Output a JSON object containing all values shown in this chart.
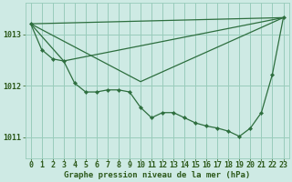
{
  "bg_color": "#ceeae4",
  "plot_bg_color": "#ceeae4",
  "grid_color": "#99ccbb",
  "line_color": "#2d6e3e",
  "marker_color": "#2d6e3e",
  "xlabel": "Graphe pression niveau de la mer (hPa)",
  "xlim": [
    -0.5,
    23.5
  ],
  "ylim": [
    1010.6,
    1013.6
  ],
  "yticks": [
    1011,
    1012,
    1013
  ],
  "xticks": [
    0,
    1,
    2,
    3,
    4,
    5,
    6,
    7,
    8,
    9,
    10,
    11,
    12,
    13,
    14,
    15,
    16,
    17,
    18,
    19,
    20,
    21,
    22,
    23
  ],
  "series1_x": [
    0,
    1,
    2,
    3,
    4,
    5,
    6,
    7,
    8,
    9,
    10,
    11,
    12,
    13,
    14,
    15,
    16,
    17,
    18,
    19,
    20,
    21,
    22,
    23
  ],
  "series1_y": [
    1013.2,
    1012.7,
    1012.52,
    1012.48,
    1012.05,
    1011.88,
    1011.88,
    1011.92,
    1011.92,
    1011.88,
    1011.58,
    1011.38,
    1011.48,
    1011.48,
    1011.38,
    1011.28,
    1011.22,
    1011.18,
    1011.12,
    1011.02,
    1011.18,
    1011.48,
    1012.22,
    1013.32
  ],
  "trend1_x": [
    0,
    23
  ],
  "trend1_y": [
    1013.2,
    1013.32
  ],
  "trend2_x": [
    0,
    23
  ],
  "trend2_y": [
    1013.2,
    1013.32
  ],
  "font_color": "#2d5a1b",
  "xlabel_fontsize": 6.5,
  "tick_fontsize": 6.0
}
